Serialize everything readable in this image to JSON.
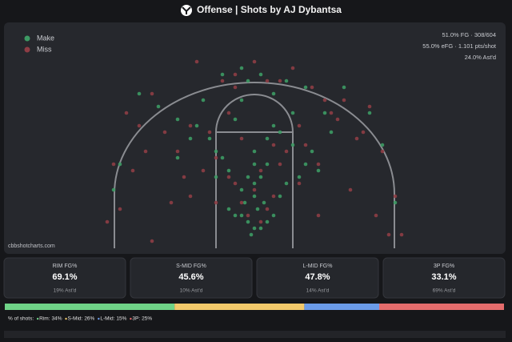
{
  "header": {
    "title": "Offense | Shots by AJ Dybantsa"
  },
  "chart_data": {
    "type": "scatter",
    "legend_position": "upper left",
    "stats": [
      "51.0% FG · 308/604",
      "55.0% eFG · 1.101 pts/shot",
      "24.0% Ast'd"
    ],
    "watermark": "cbbshotcharts.com",
    "series": [
      {
        "name": "Make",
        "color": "#3d9a64",
        "x": [
          0,
          1,
          -1,
          2,
          -2,
          0.5,
          -0.5,
          1.5,
          -1.5,
          0,
          3,
          -3,
          0,
          1,
          -1,
          2,
          -2,
          4,
          -4,
          5,
          -5,
          6,
          -6,
          7,
          -7,
          8,
          -9,
          10,
          -10,
          11,
          -12,
          3,
          -3,
          0,
          2,
          -2,
          6,
          -6,
          9,
          -8,
          0,
          4,
          -4,
          12,
          -12,
          14,
          -15,
          18,
          -18,
          20,
          -21,
          22,
          -22,
          5,
          -5,
          1,
          -1,
          8,
          -2,
          3
        ],
        "y": [
          4,
          4,
          5,
          5,
          6,
          7,
          3,
          8,
          8,
          9,
          6,
          6,
          11,
          12,
          12,
          14,
          10,
          9,
          13,
          11,
          15,
          17,
          16,
          12,
          18,
          14,
          20,
          13,
          18,
          22,
          15,
          20,
          21,
          16,
          18,
          24,
          22,
          12,
          16,
          24,
          14,
          19,
          7,
          19,
          21,
          26,
          23,
          22,
          25,
          17,
          14,
          8,
          10,
          27,
          28,
          28,
          27,
          26,
          29,
          25
        ]
      },
      {
        "name": "Miss",
        "color": "#8e3d45",
        "x": [
          1,
          -1,
          2,
          -2,
          0,
          3,
          -3,
          4,
          -4,
          5,
          -6,
          7,
          -7,
          8,
          -8,
          10,
          -10,
          12,
          -12,
          14,
          -14,
          16,
          -16,
          18,
          -18,
          20,
          -20,
          22,
          -22,
          23,
          -23,
          2,
          -3,
          6,
          -5,
          9,
          -9,
          11,
          -11,
          13,
          -13,
          15,
          -17,
          19,
          -19,
          21,
          -21,
          0,
          3,
          -4,
          7,
          -6,
          1,
          -2,
          10,
          -10,
          4,
          -3,
          17,
          -16
        ],
        "y": [
          5,
          6,
          7,
          8,
          10,
          9,
          11,
          14,
          12,
          16,
          15,
          11,
          19,
          17,
          13,
          14,
          20,
          22,
          16,
          24,
          19,
          18,
          25,
          23,
          20,
          16,
          22,
          9,
          14,
          3,
          5,
          27,
          28,
          29,
          27,
          26,
          30,
          24,
          12,
          21,
          8,
          10,
          16,
          6,
          13,
          3,
          7,
          30,
          17,
          22,
          20,
          8,
          13,
          18,
          6,
          9,
          27,
          26,
          19,
          2
        ]
      }
    ]
  },
  "zones": {
    "label": "% of shots:",
    "items": [
      {
        "name": "RIM FG%",
        "fg": "69.1%",
        "astd": "19% Ast'd",
        "short": "Rim:",
        "share": 34,
        "share_label": "34%",
        "color": "#6fd387"
      },
      {
        "name": "S-MID FG%",
        "fg": "45.6%",
        "astd": "10% Ast'd",
        "short": "S-Mid:",
        "share": 26,
        "share_label": "26%",
        "color": "#f2c96a"
      },
      {
        "name": "L-MID FG%",
        "fg": "47.8%",
        "astd": "14% Ast'd",
        "short": "L-Mid:",
        "share": 15,
        "share_label": "15%",
        "color": "#6b9be8"
      },
      {
        "name": "3P FG%",
        "fg": "33.1%",
        "astd": "69% Ast'd",
        "short": "3P:",
        "share": 25,
        "share_label": "25%",
        "color": "#e46c6c"
      }
    ]
  }
}
